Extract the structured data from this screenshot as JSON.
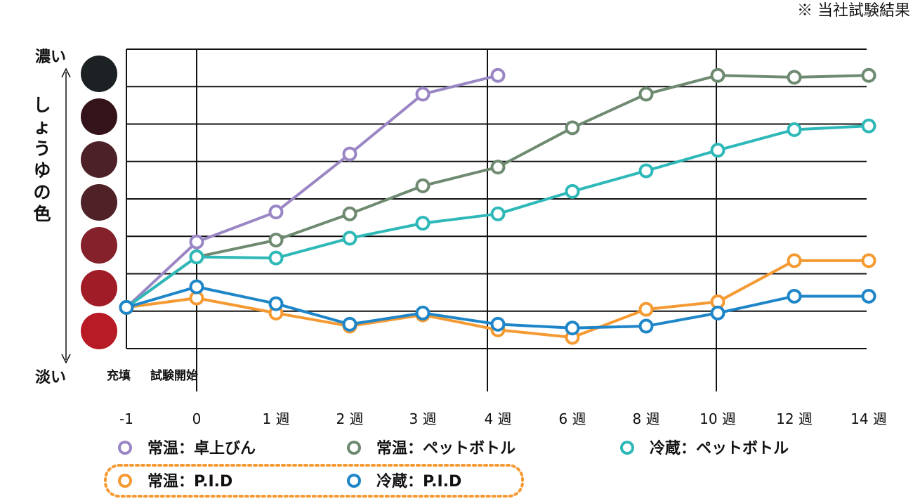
{
  "note": "※ 当社試験結果",
  "chart_data": {
    "type": "line",
    "ylabel": "しょうゆの色",
    "y_top_label": "濃い",
    "y_bottom_label": "淡い",
    "start_annotations": [
      "充填",
      "試験開始"
    ],
    "categories": [
      "-1",
      "0",
      "1 週",
      "2 週",
      "3 週",
      "4 週",
      "6 週",
      "8 週",
      "10 週",
      "12 週",
      "14 週"
    ],
    "ylim": [
      0,
      8
    ],
    "y_grid_lines": 8,
    "color_swatches": [
      "#1c2124",
      "#34141a",
      "#4c2128",
      "#4f2228",
      "#84212a",
      "#a01c26",
      "#b81a26"
    ],
    "series": [
      {
        "name": "常温：卓上びん",
        "color": "#9a86c4",
        "values": [
          1.1,
          2.85,
          3.65,
          5.2,
          6.8,
          7.3,
          null,
          null,
          null,
          null,
          null
        ]
      },
      {
        "name": "常温：ペットボトル",
        "color": "#6e8a70",
        "values": [
          1.1,
          2.45,
          2.9,
          3.6,
          4.35,
          4.85,
          5.9,
          6.8,
          7.3,
          7.25,
          7.3
        ]
      },
      {
        "name": "冷蔵：ペットボトル",
        "color": "#2eb8b8",
        "values": [
          1.1,
          2.45,
          2.42,
          2.95,
          3.35,
          3.6,
          4.2,
          4.75,
          5.3,
          5.85,
          5.95
        ]
      },
      {
        "name": "常温：P.I.D",
        "color": "#f59a32",
        "values": [
          1.1,
          1.35,
          0.95,
          0.6,
          0.9,
          0.5,
          0.3,
          1.05,
          1.25,
          2.35,
          2.35
        ]
      },
      {
        "name": "冷蔵：P.I.D",
        "color": "#1e86c8",
        "values": [
          1.1,
          1.65,
          1.2,
          0.65,
          0.95,
          0.65,
          0.55,
          0.6,
          0.95,
          1.4,
          1.4
        ]
      }
    ],
    "legend": {
      "placement": "bottom",
      "highlighted": [
        "常温：P.I.D",
        "冷蔵：P.I.D"
      ]
    }
  }
}
